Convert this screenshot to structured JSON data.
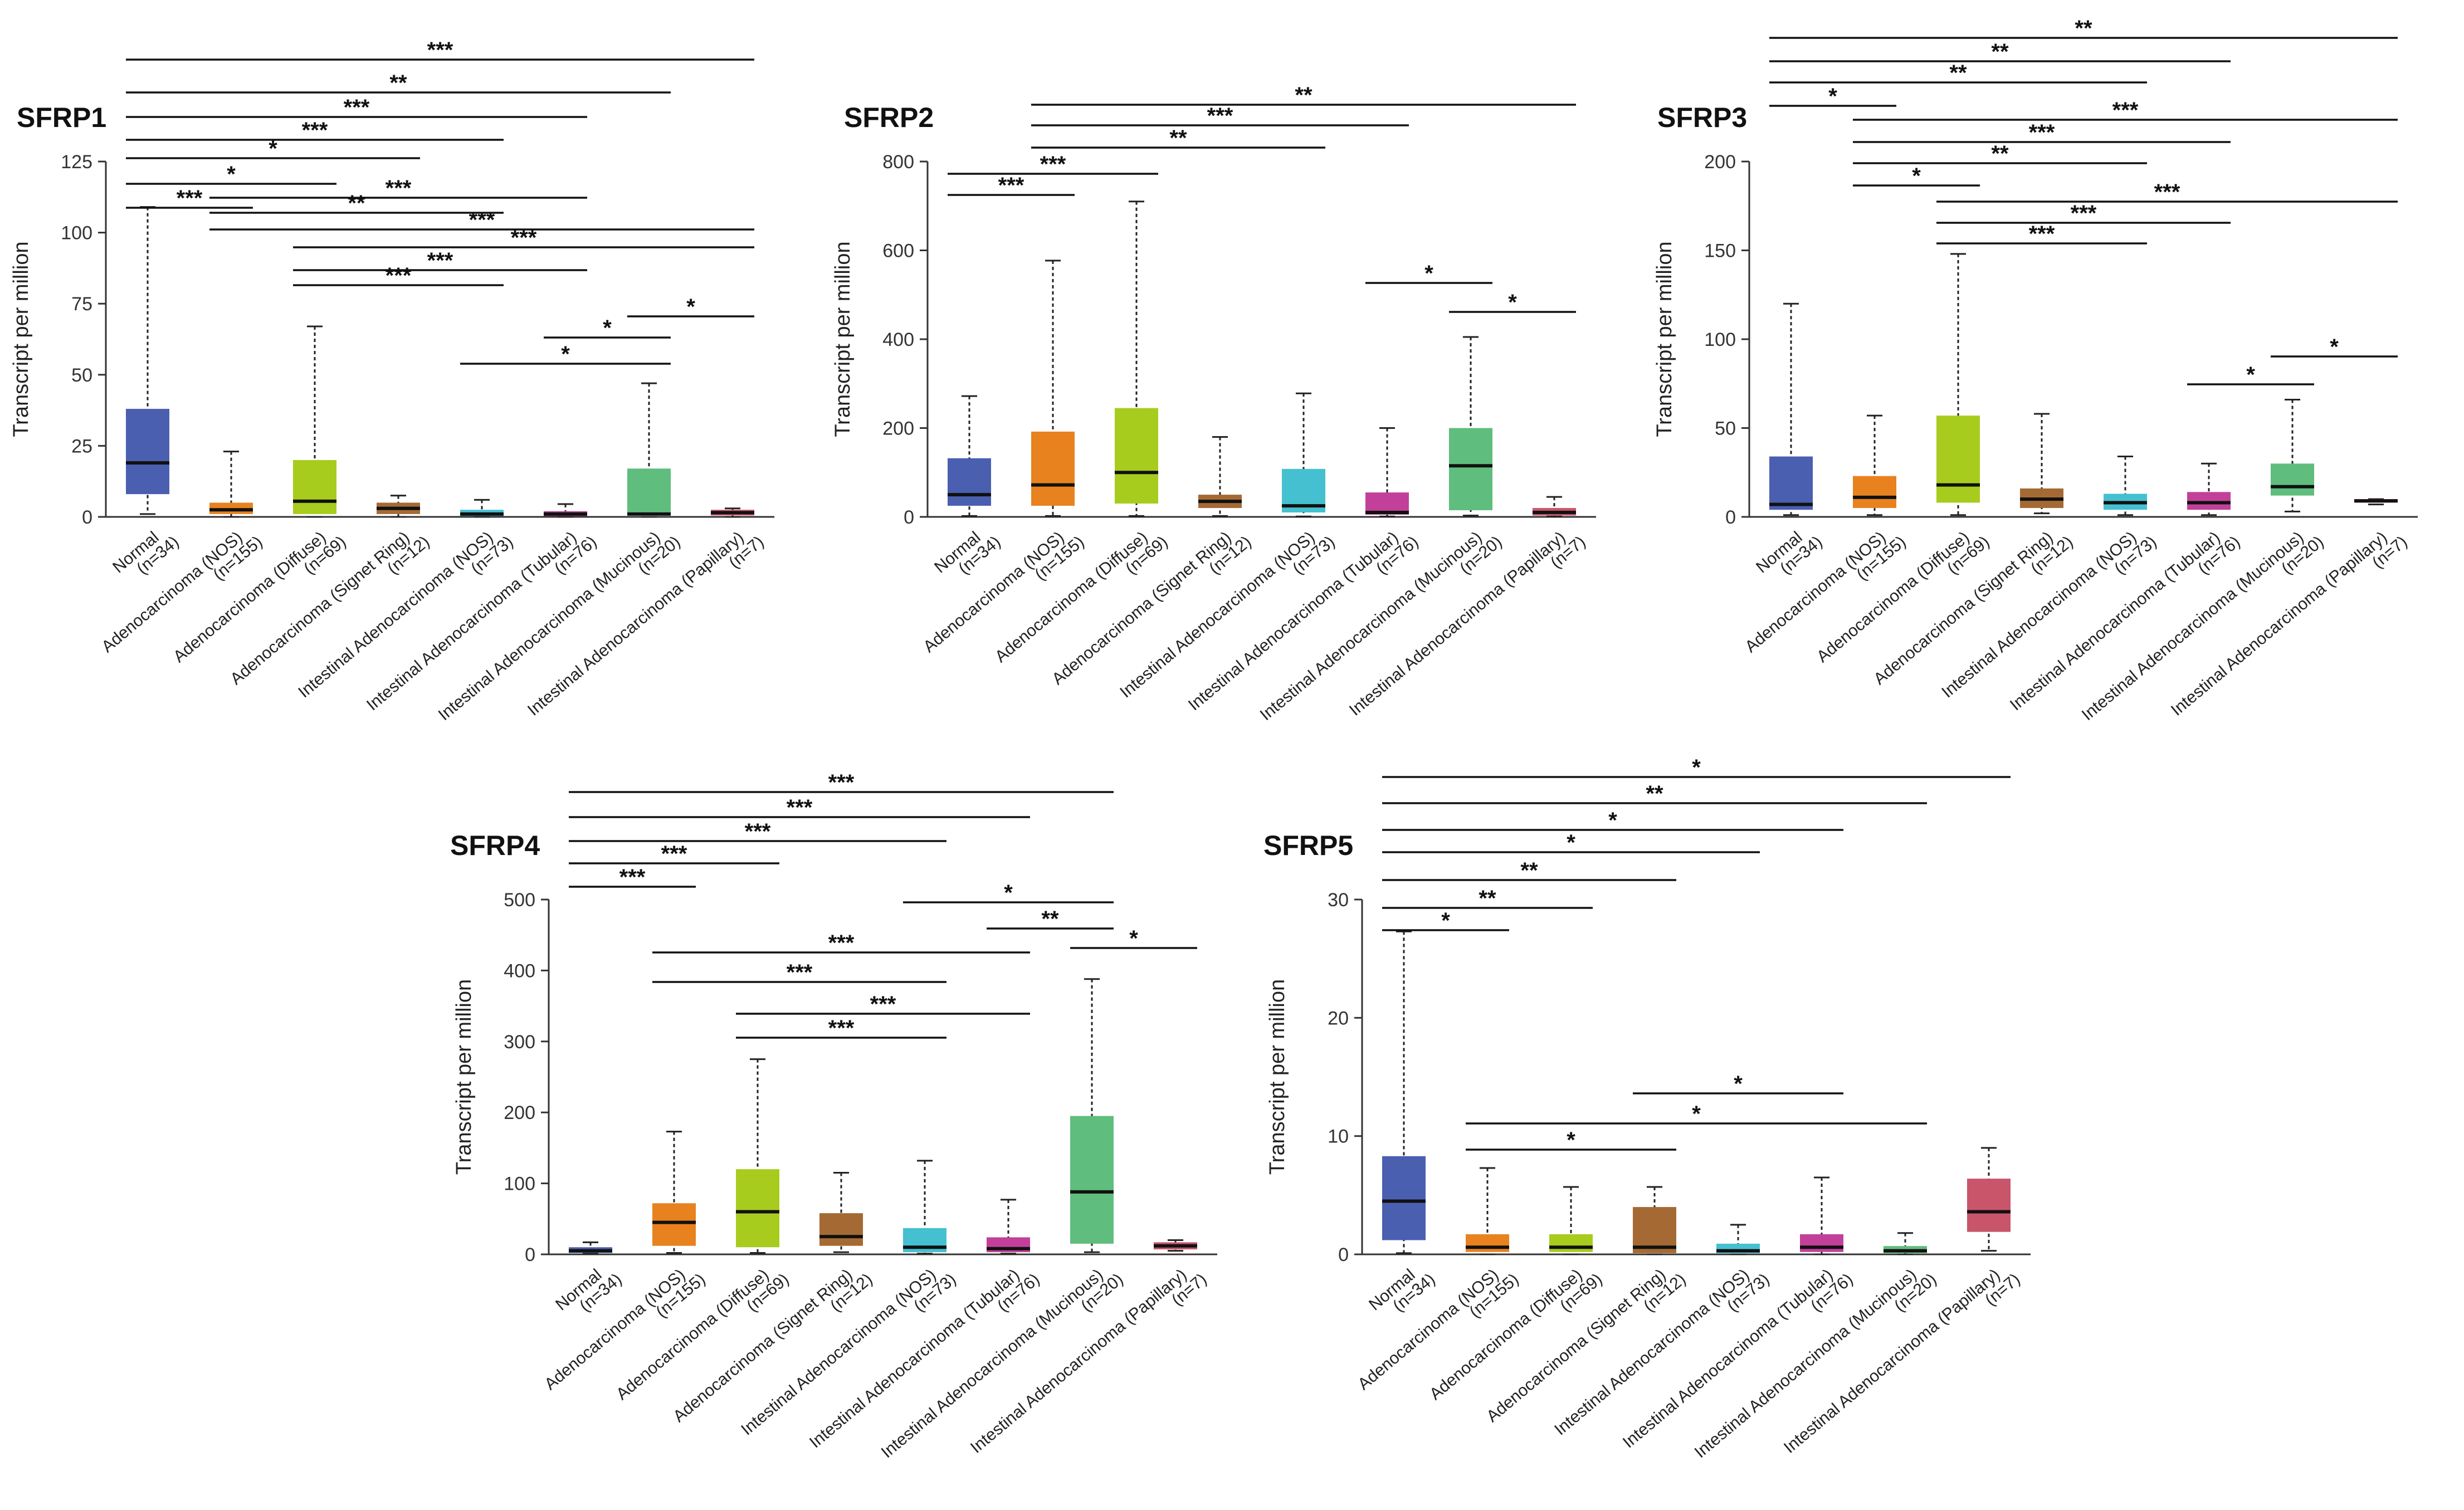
{
  "figure": {
    "ylabel": "Transcript per million",
    "categories": [
      "Normal",
      "Adenocarcinoma (NOS)",
      "Adenocarcinoma (Diffuse)",
      "Adenocarcinoma (Signet Ring)",
      "Intestinal Adenocarcinoma (NOS)",
      "Intestinal Adenocarcinoma (Tubular)",
      "Intestinal Adenocarcinoma (Mucinous)",
      "Intestinal Adenocarcinoma (Papillary)"
    ],
    "sample_sizes": [
      "(n=34)",
      "(n=155)",
      "(n=69)",
      "(n=12)",
      "(n=73)",
      "(n=76)",
      "(n=20)",
      "(n=7)"
    ],
    "colors": [
      "#4a5fb0",
      "#e8821f",
      "#a8cc1d",
      "#a56a34",
      "#44c0d0",
      "#c2409a",
      "#5fbd7e",
      "#c9556a"
    ]
  },
  "chart_data": [
    {
      "type": "boxplot",
      "title": "SFRP1",
      "ylabel": "Transcript per million",
      "ylim": [
        0,
        125
      ],
      "yticks": [
        0,
        25,
        50,
        75,
        100,
        125
      ],
      "series": [
        {
          "category": "Normal",
          "n": "(n=34)",
          "min": 1,
          "q1": 8,
          "median": 19,
          "q3": 38,
          "max": 109
        },
        {
          "category": "Adenocarcinoma (NOS)",
          "n": "(n=155)",
          "min": 0,
          "q1": 1,
          "median": 2.5,
          "q3": 5,
          "max": 23
        },
        {
          "category": "Adenocarcinoma (Diffuse)",
          "n": "(n=69)",
          "min": 0,
          "q1": 1,
          "median": 5.5,
          "q3": 20,
          "max": 67
        },
        {
          "category": "Adenocarcinoma (Signet Ring)",
          "n": "(n=12)",
          "min": 0,
          "q1": 1,
          "median": 3,
          "q3": 5,
          "max": 7.5
        },
        {
          "category": "Intestinal Adenocarcinoma (NOS)",
          "n": "(n=73)",
          "min": 0,
          "q1": 0.3,
          "median": 1,
          "q3": 2.5,
          "max": 6
        },
        {
          "category": "Intestinal Adenocarcinoma (Tubular)",
          "n": "(n=76)",
          "min": 0,
          "q1": 0.3,
          "median": 1,
          "q3": 2,
          "max": 4.5
        },
        {
          "category": "Intestinal Adenocarcinoma (Mucinous)",
          "n": "(n=20)",
          "min": 0,
          "q1": 0.5,
          "median": 1,
          "q3": 17,
          "max": 47
        },
        {
          "category": "Intestinal Adenocarcinoma (Papillary)",
          "n": "(n=7)",
          "min": 0,
          "q1": 0.5,
          "median": 1.5,
          "q3": 2.5,
          "max": 3
        }
      ],
      "significance": [
        {
          "from": 0,
          "to": 7,
          "label": "***"
        },
        {
          "from": 0,
          "to": 6,
          "label": "**"
        },
        {
          "from": 0,
          "to": 5,
          "label": "***"
        },
        {
          "from": 0,
          "to": 4,
          "label": "***"
        },
        {
          "from": 0,
          "to": 3,
          "label": "*"
        },
        {
          "from": 0,
          "to": 2,
          "label": "*"
        },
        {
          "from": 0,
          "to": 1,
          "label": "***"
        },
        {
          "from": 1,
          "to": 7,
          "label": "***"
        },
        {
          "from": 1,
          "to": 5,
          "label": "***"
        },
        {
          "from": 1,
          "to": 4,
          "label": "**"
        },
        {
          "from": 2,
          "to": 7,
          "label": "***"
        },
        {
          "from": 2,
          "to": 5,
          "label": "***"
        },
        {
          "from": 2,
          "to": 4,
          "label": "***"
        },
        {
          "from": 5,
          "to": 6,
          "label": "*"
        },
        {
          "from": 6,
          "to": 7,
          "label": "*"
        },
        {
          "from": 4,
          "to": 6,
          "label": "*"
        }
      ]
    },
    {
      "type": "boxplot",
      "title": "SFRP2",
      "ylabel": "Transcript per million",
      "ylim": [
        0,
        800
      ],
      "yticks": [
        0,
        200,
        400,
        600,
        800
      ],
      "series": [
        {
          "category": "Normal",
          "n": "(n=34)",
          "min": 2,
          "q1": 25,
          "median": 50,
          "q3": 132,
          "max": 272
        },
        {
          "category": "Adenocarcinoma (NOS)",
          "n": "(n=155)",
          "min": 2,
          "q1": 25,
          "median": 72,
          "q3": 192,
          "max": 577
        },
        {
          "category": "Adenocarcinoma (Diffuse)",
          "n": "(n=69)",
          "min": 2,
          "q1": 30,
          "median": 100,
          "q3": 245,
          "max": 710
        },
        {
          "category": "Adenocarcinoma (Signet Ring)",
          "n": "(n=12)",
          "min": 2,
          "q1": 20,
          "median": 35,
          "q3": 50,
          "max": 180
        },
        {
          "category": "Intestinal Adenocarcinoma (NOS)",
          "n": "(n=73)",
          "min": 1,
          "q1": 10,
          "median": 25,
          "q3": 108,
          "max": 278
        },
        {
          "category": "Intestinal Adenocarcinoma (Tubular)",
          "n": "(n=76)",
          "min": 1,
          "q1": 5,
          "median": 10,
          "q3": 55,
          "max": 200
        },
        {
          "category": "Intestinal Adenocarcinoma (Mucinous)",
          "n": "(n=20)",
          "min": 3,
          "q1": 15,
          "median": 115,
          "q3": 200,
          "max": 405
        },
        {
          "category": "Intestinal Adenocarcinoma (Papillary)",
          "n": "(n=7)",
          "min": 1,
          "q1": 3,
          "median": 10,
          "q3": 20,
          "max": 45
        }
      ],
      "significance": [
        {
          "from": 1,
          "to": 7,
          "label": "**"
        },
        {
          "from": 1,
          "to": 5,
          "label": "***"
        },
        {
          "from": 1,
          "to": 4,
          "label": "**"
        },
        {
          "from": 0,
          "to": 2,
          "label": "***"
        },
        {
          "from": 0,
          "to": 1,
          "label": "***"
        },
        {
          "from": 6,
          "to": 7,
          "label": "*"
        },
        {
          "from": 5,
          "to": 6,
          "label": "*"
        }
      ]
    },
    {
      "type": "boxplot",
      "title": "SFRP3",
      "ylabel": "Transcript per million",
      "ylim": [
        0,
        200
      ],
      "yticks": [
        0,
        50,
        100,
        150,
        200
      ],
      "series": [
        {
          "category": "Normal",
          "n": "(n=34)",
          "min": 1,
          "q1": 4,
          "median": 7,
          "q3": 34,
          "max": 120
        },
        {
          "category": "Adenocarcinoma (NOS)",
          "n": "(n=155)",
          "min": 1,
          "q1": 5,
          "median": 11,
          "q3": 23,
          "max": 57
        },
        {
          "category": "Adenocarcinoma (Diffuse)",
          "n": "(n=69)",
          "min": 1,
          "q1": 8,
          "median": 18,
          "q3": 57,
          "max": 148
        },
        {
          "category": "Adenocarcinoma (Signet Ring)",
          "n": "(n=12)",
          "min": 2,
          "q1": 5,
          "median": 10,
          "q3": 16,
          "max": 58
        },
        {
          "category": "Intestinal Adenocarcinoma (NOS)",
          "n": "(n=73)",
          "min": 1,
          "q1": 4,
          "median": 8,
          "q3": 13,
          "max": 34
        },
        {
          "category": "Intestinal Adenocarcinoma (Tubular)",
          "n": "(n=76)",
          "min": 1,
          "q1": 4,
          "median": 8,
          "q3": 14,
          "max": 30
        },
        {
          "category": "Intestinal Adenocarcinoma (Mucinous)",
          "n": "(n=20)",
          "min": 3,
          "q1": 12,
          "median": 17,
          "q3": 30,
          "max": 66
        },
        {
          "category": "Intestinal Adenocarcinoma (Papillary)",
          "n": "(n=7)",
          "min": 7,
          "q1": 8,
          "median": 9,
          "q3": 10,
          "max": 10
        }
      ],
      "significance": [
        {
          "from": 0,
          "to": 7,
          "label": "**"
        },
        {
          "from": 0,
          "to": 5,
          "label": "**"
        },
        {
          "from": 0,
          "to": 4,
          "label": "**"
        },
        {
          "from": 0,
          "to": 1,
          "label": "*"
        },
        {
          "from": 1,
          "to": 7,
          "label": "***"
        },
        {
          "from": 1,
          "to": 5,
          "label": "***"
        },
        {
          "from": 1,
          "to": 4,
          "label": "**"
        },
        {
          "from": 1,
          "to": 2,
          "label": "*"
        },
        {
          "from": 2,
          "to": 7,
          "label": "***"
        },
        {
          "from": 2,
          "to": 5,
          "label": "***"
        },
        {
          "from": 2,
          "to": 4,
          "label": "***"
        },
        {
          "from": 5,
          "to": 6,
          "label": "*"
        },
        {
          "from": 6,
          "to": 7,
          "label": "*"
        }
      ]
    },
    {
      "type": "boxplot",
      "title": "SFRP4",
      "ylabel": "Transcript per million",
      "ylim": [
        0,
        500
      ],
      "yticks": [
        0,
        100,
        200,
        300,
        400,
        500
      ],
      "series": [
        {
          "category": "Normal",
          "n": "(n=34)",
          "min": 1,
          "q1": 2,
          "median": 5,
          "q3": 10,
          "max": 17
        },
        {
          "category": "Adenocarcinoma (NOS)",
          "n": "(n=155)",
          "min": 2,
          "q1": 12,
          "median": 45,
          "q3": 72,
          "max": 173
        },
        {
          "category": "Adenocarcinoma (Diffuse)",
          "n": "(n=69)",
          "min": 2,
          "q1": 10,
          "median": 60,
          "q3": 120,
          "max": 275
        },
        {
          "category": "Adenocarcinoma (Signet Ring)",
          "n": "(n=12)",
          "min": 3,
          "q1": 12,
          "median": 25,
          "q3": 58,
          "max": 115
        },
        {
          "category": "Intestinal Adenocarcinoma (NOS)",
          "n": "(n=73)",
          "min": 1,
          "q1": 3,
          "median": 10,
          "q3": 37,
          "max": 132
        },
        {
          "category": "Intestinal Adenocarcinoma (Tubular)",
          "n": "(n=76)",
          "min": 1,
          "q1": 3,
          "median": 8,
          "q3": 24,
          "max": 77
        },
        {
          "category": "Intestinal Adenocarcinoma (Mucinous)",
          "n": "(n=20)",
          "min": 3,
          "q1": 15,
          "median": 88,
          "q3": 195,
          "max": 388
        },
        {
          "category": "Intestinal Adenocarcinoma (Papillary)",
          "n": "(n=7)",
          "min": 5,
          "q1": 7,
          "median": 12,
          "q3": 17,
          "max": 20
        }
      ],
      "significance": [
        {
          "from": 0,
          "to": 6,
          "label": "***"
        },
        {
          "from": 0,
          "to": 5,
          "label": "***"
        },
        {
          "from": 0,
          "to": 4,
          "label": "***"
        },
        {
          "from": 0,
          "to": 2,
          "label": "***"
        },
        {
          "from": 0,
          "to": 1,
          "label": "***"
        },
        {
          "from": 4,
          "to": 6,
          "label": "*"
        },
        {
          "from": 5,
          "to": 6,
          "label": "**"
        },
        {
          "from": 1,
          "to": 5,
          "label": "***"
        },
        {
          "from": 1,
          "to": 4,
          "label": "***"
        },
        {
          "from": 2,
          "to": 5,
          "label": "***"
        },
        {
          "from": 2,
          "to": 4,
          "label": "***"
        },
        {
          "from": 6,
          "to": 7,
          "label": "*"
        }
      ]
    },
    {
      "type": "boxplot",
      "title": "SFRP5",
      "ylabel": "Transcript per million",
      "ylim": [
        0,
        30
      ],
      "yticks": [
        0,
        10,
        20,
        30
      ],
      "series": [
        {
          "category": "Normal",
          "n": "(n=34)",
          "min": 0.1,
          "q1": 1.2,
          "median": 4.5,
          "q3": 8.3,
          "max": 27.3
        },
        {
          "category": "Adenocarcinoma (NOS)",
          "n": "(n=155)",
          "min": 0,
          "q1": 0.2,
          "median": 0.6,
          "q3": 1.7,
          "max": 7.3
        },
        {
          "category": "Adenocarcinoma (Diffuse)",
          "n": "(n=69)",
          "min": 0,
          "q1": 0.2,
          "median": 0.6,
          "q3": 1.7,
          "max": 5.7
        },
        {
          "category": "Adenocarcinoma (Signet Ring)",
          "n": "(n=12)",
          "min": 0,
          "q1": 0.1,
          "median": 0.6,
          "q3": 4,
          "max": 5.7
        },
        {
          "category": "Intestinal Adenocarcinoma (NOS)",
          "n": "(n=73)",
          "min": 0,
          "q1": 0.1,
          "median": 0.3,
          "q3": 0.9,
          "max": 2.5
        },
        {
          "category": "Intestinal Adenocarcinoma (Tubular)",
          "n": "(n=76)",
          "min": 0,
          "q1": 0.2,
          "median": 0.6,
          "q3": 1.7,
          "max": 6.5
        },
        {
          "category": "Intestinal Adenocarcinoma (Mucinous)",
          "n": "(n=20)",
          "min": 0,
          "q1": 0.1,
          "median": 0.3,
          "q3": 0.7,
          "max": 1.8
        },
        {
          "category": "Intestinal Adenocarcinoma (Papillary)",
          "n": "(n=7)",
          "min": 0.3,
          "q1": 1.9,
          "median": 3.6,
          "q3": 6.4,
          "max": 9
        }
      ],
      "significance": [
        {
          "from": 0,
          "to": 7,
          "label": "*"
        },
        {
          "from": 0,
          "to": 6,
          "label": "**"
        },
        {
          "from": 0,
          "to": 5,
          "label": "*"
        },
        {
          "from": 0,
          "to": 4,
          "label": "*"
        },
        {
          "from": 0,
          "to": 3,
          "label": "**"
        },
        {
          "from": 0,
          "to": 2,
          "label": "**"
        },
        {
          "from": 0,
          "to": 1,
          "label": "*"
        },
        {
          "from": 3,
          "to": 5,
          "label": "*"
        },
        {
          "from": 1,
          "to": 6,
          "label": "*"
        },
        {
          "from": 1,
          "to": 3,
          "label": "*"
        }
      ]
    }
  ]
}
